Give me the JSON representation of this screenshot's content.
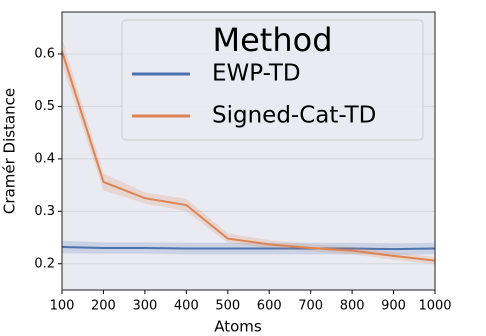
{
  "chart_data": {
    "type": "line",
    "xlabel": "Atoms",
    "ylabel": "Cramér Distance",
    "legend_title": "Method",
    "legend": "upper right",
    "x": [
      100,
      200,
      300,
      400,
      500,
      600,
      700,
      800,
      900,
      1000
    ],
    "series": [
      {
        "name": "EWP-TD",
        "color": "#4c72b0",
        "values": [
          0.232,
          0.23,
          0.23,
          0.229,
          0.229,
          0.229,
          0.229,
          0.229,
          0.228,
          0.229
        ],
        "lower": [
          0.22,
          0.219,
          0.219,
          0.218,
          0.218,
          0.218,
          0.218,
          0.218,
          0.217,
          0.218
        ],
        "upper": [
          0.244,
          0.241,
          0.241,
          0.24,
          0.24,
          0.24,
          0.24,
          0.24,
          0.239,
          0.24
        ]
      },
      {
        "name": "Signed-Cat-TD",
        "color": "#dd8452",
        "values": [
          0.605,
          0.356,
          0.325,
          0.312,
          0.248,
          0.237,
          0.23,
          0.225,
          0.215,
          0.206
        ],
        "lower": [
          0.58,
          0.34,
          0.315,
          0.3,
          0.24,
          0.23,
          0.224,
          0.218,
          0.208,
          0.199
        ],
        "upper": [
          0.63,
          0.372,
          0.336,
          0.324,
          0.258,
          0.245,
          0.237,
          0.232,
          0.222,
          0.213
        ]
      }
    ],
    "xlim": [
      100,
      1000
    ],
    "ylim": [
      0.15,
      0.68
    ],
    "xticks": [
      100,
      200,
      300,
      400,
      500,
      600,
      700,
      800,
      900,
      1000
    ],
    "yticks": [
      0.2,
      0.3,
      0.4,
      0.5,
      0.6
    ],
    "grid": true,
    "background": "#eaeaf2"
  }
}
